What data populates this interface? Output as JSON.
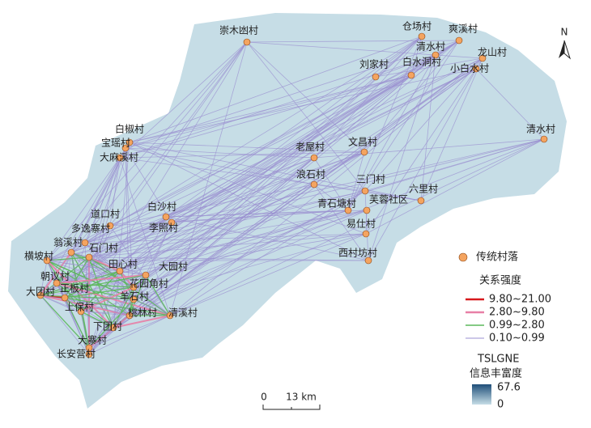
{
  "north": "N",
  "villages": [
    "崇木凼村",
    "仓场村",
    "爽溪村",
    "清水村",
    "龙山村",
    "刘家村",
    "白水洞村",
    "小白水村",
    "清水村",
    "白椒村",
    "宝瑶村",
    "大麻溪村",
    "老屋村",
    "文昌村",
    "浪石村",
    "三门村",
    "六里村",
    "青石塘村",
    "芙蓉社区",
    "易仕村",
    "白沙村",
    "李照村",
    "道口村",
    "多逸寨村",
    "翁溪村",
    "石门村",
    "横坡村",
    "西村坊村",
    "田心村",
    "大园村",
    "朝议村",
    "花园角村",
    "大团村",
    "正板村",
    "羊石村",
    "上保村",
    "桃林村",
    "清溪村",
    "下团村",
    "大寨村",
    "长安营村"
  ],
  "legend": {
    "village_label": "传统村落",
    "strength_title": "关系强度",
    "strength_classes": [
      {
        "label": "9.80~21.00",
        "color": "#d7191c"
      },
      {
        "label": "2.80~9.80",
        "color": "#e77fa6"
      },
      {
        "label": "0.99~2.80",
        "color": "#5cb85c"
      },
      {
        "label": "0.10~0.99",
        "color": "#9a8fd0"
      }
    ],
    "density_title": "TSLGNE",
    "density_subtitle": "信息丰富度",
    "density_max": 67.6,
    "density_min": 0
  },
  "scale": {
    "start": 0,
    "end": "13 km"
  }
}
